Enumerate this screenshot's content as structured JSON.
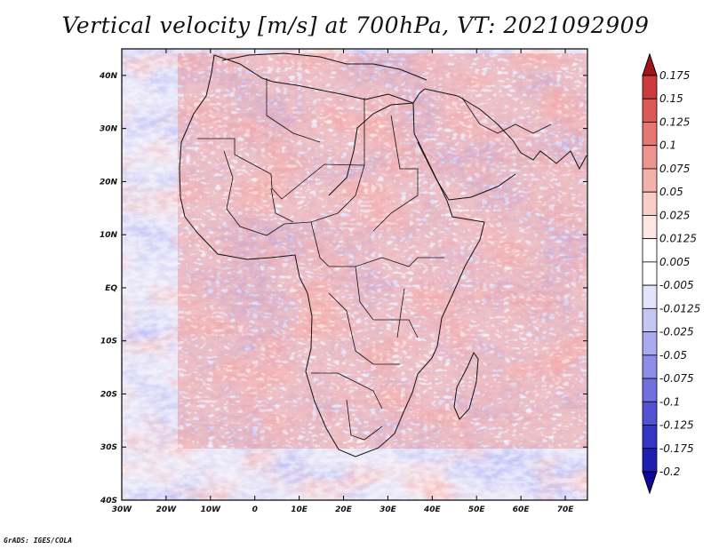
{
  "title": "Vertical velocity [m/s] at 700hPa, VT: 2021092909",
  "credit": "GrADS: IGES/COLA",
  "map": {
    "lon_range": [
      -30,
      75
    ],
    "lat_range": [
      -40,
      45
    ],
    "x_ticks": [
      {
        "value": -30,
        "label": "30W"
      },
      {
        "value": -20,
        "label": "20W"
      },
      {
        "value": -10,
        "label": "10W"
      },
      {
        "value": 0,
        "label": "0"
      },
      {
        "value": 10,
        "label": "10E"
      },
      {
        "value": 20,
        "label": "20E"
      },
      {
        "value": 30,
        "label": "30E"
      },
      {
        "value": 40,
        "label": "40E"
      },
      {
        "value": 50,
        "label": "50E"
      },
      {
        "value": 60,
        "label": "60E"
      },
      {
        "value": 70,
        "label": "70E"
      }
    ],
    "y_ticks": [
      {
        "value": 40,
        "label": "40N"
      },
      {
        "value": 30,
        "label": "30N"
      },
      {
        "value": 20,
        "label": "20N"
      },
      {
        "value": 10,
        "label": "10N"
      },
      {
        "value": 0,
        "label": "EQ"
      },
      {
        "value": -10,
        "label": "10S"
      },
      {
        "value": -20,
        "label": "20S"
      },
      {
        "value": -30,
        "label": "30S"
      },
      {
        "value": -40,
        "label": "40S"
      }
    ]
  },
  "colorbar": {
    "levels": [
      {
        "label": "0.175",
        "color": "#b81e24"
      },
      {
        "label": "0.15",
        "color": "#cc3c3c"
      },
      {
        "label": "0.125",
        "color": "#dc5a56"
      },
      {
        "label": "0.1",
        "color": "#e67772"
      },
      {
        "label": "0.075",
        "color": "#ee948e"
      },
      {
        "label": "0.05",
        "color": "#f4b1aa"
      },
      {
        "label": "0.025",
        "color": "#f9cdc8"
      },
      {
        "label": "0.0125",
        "color": "#fde6e3"
      },
      {
        "label": "0.005",
        "color": "#ffffff"
      },
      {
        "label": "-0.005",
        "color": "#e3e3fb"
      },
      {
        "label": "-0.0125",
        "color": "#c6c6f5"
      },
      {
        "label": "-0.025",
        "color": "#aaaaf0"
      },
      {
        "label": "-0.05",
        "color": "#8e8ee8"
      },
      {
        "label": "-0.075",
        "color": "#7070df"
      },
      {
        "label": "-0.1",
        "color": "#5252d3"
      },
      {
        "label": "-0.125",
        "color": "#3535c4"
      },
      {
        "label": "-0.175",
        "color": "#1e1eb0"
      },
      {
        "label": "-0.2",
        "color": "#1010a0"
      }
    ],
    "top_color": "#a0141c",
    "bottom_color": "#10089a"
  }
}
